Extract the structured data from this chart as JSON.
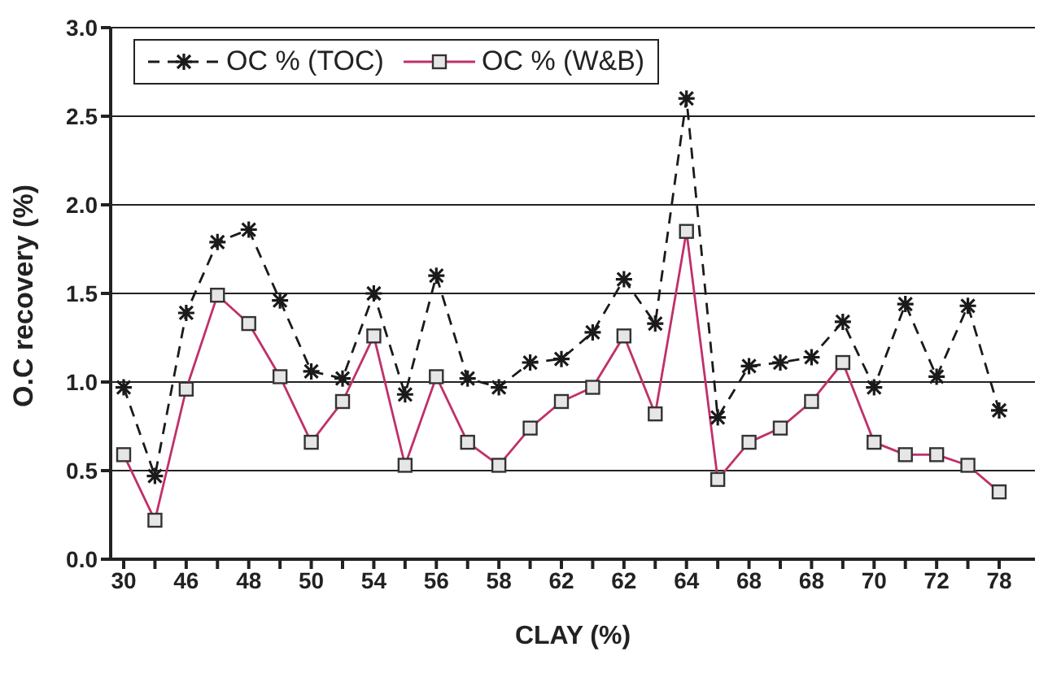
{
  "chart_data": {
    "type": "line",
    "xlabel": "CLAY (%)",
    "ylabel": "O.C recovery (%)",
    "categories": [
      "30",
      null,
      "46",
      null,
      "48",
      null,
      "50",
      null,
      "54",
      null,
      "56",
      null,
      "58",
      null,
      "62",
      null,
      "62",
      null,
      "64",
      null,
      "68",
      null,
      "68",
      null,
      "70",
      null,
      "72",
      null,
      "78"
    ],
    "series": [
      {
        "name": "OC % (TOC)",
        "color": "#1a1a1a",
        "marker": "cross",
        "line_style": "dashed",
        "values": [
          0.97,
          0.47,
          1.39,
          1.79,
          1.86,
          1.46,
          1.06,
          1.02,
          1.5,
          0.93,
          1.6,
          1.02,
          0.97,
          1.11,
          1.13,
          1.28,
          1.58,
          1.33,
          2.6,
          0.8,
          1.09,
          1.11,
          1.14,
          1.34,
          0.97,
          1.44,
          1.03,
          1.43,
          0.84
        ]
      },
      {
        "name": "OC % (W&B)",
        "color": "#c0306a",
        "marker": "square",
        "line_style": "solid",
        "values": [
          0.59,
          0.22,
          0.96,
          1.49,
          1.33,
          1.03,
          0.66,
          0.89,
          1.26,
          0.53,
          1.03,
          0.66,
          0.53,
          0.74,
          0.89,
          0.97,
          1.26,
          0.82,
          1.85,
          0.45,
          0.66,
          0.74,
          0.89,
          1.11,
          0.66,
          0.59,
          0.59,
          0.53,
          0.38
        ]
      }
    ],
    "ylim": [
      0,
      3
    ],
    "yticks": [
      {
        "value": 0,
        "label": "0.0"
      },
      {
        "value": 0.5,
        "label": "0.5"
      },
      {
        "value": 1,
        "label": "1.0"
      },
      {
        "value": 1.5,
        "label": "1.5"
      },
      {
        "value": 2,
        "label": "2.0"
      },
      {
        "value": 2.5,
        "label": "2.5"
      },
      {
        "value": 3,
        "label": "3.0"
      }
    ],
    "grid": "y",
    "legend": "top left"
  }
}
